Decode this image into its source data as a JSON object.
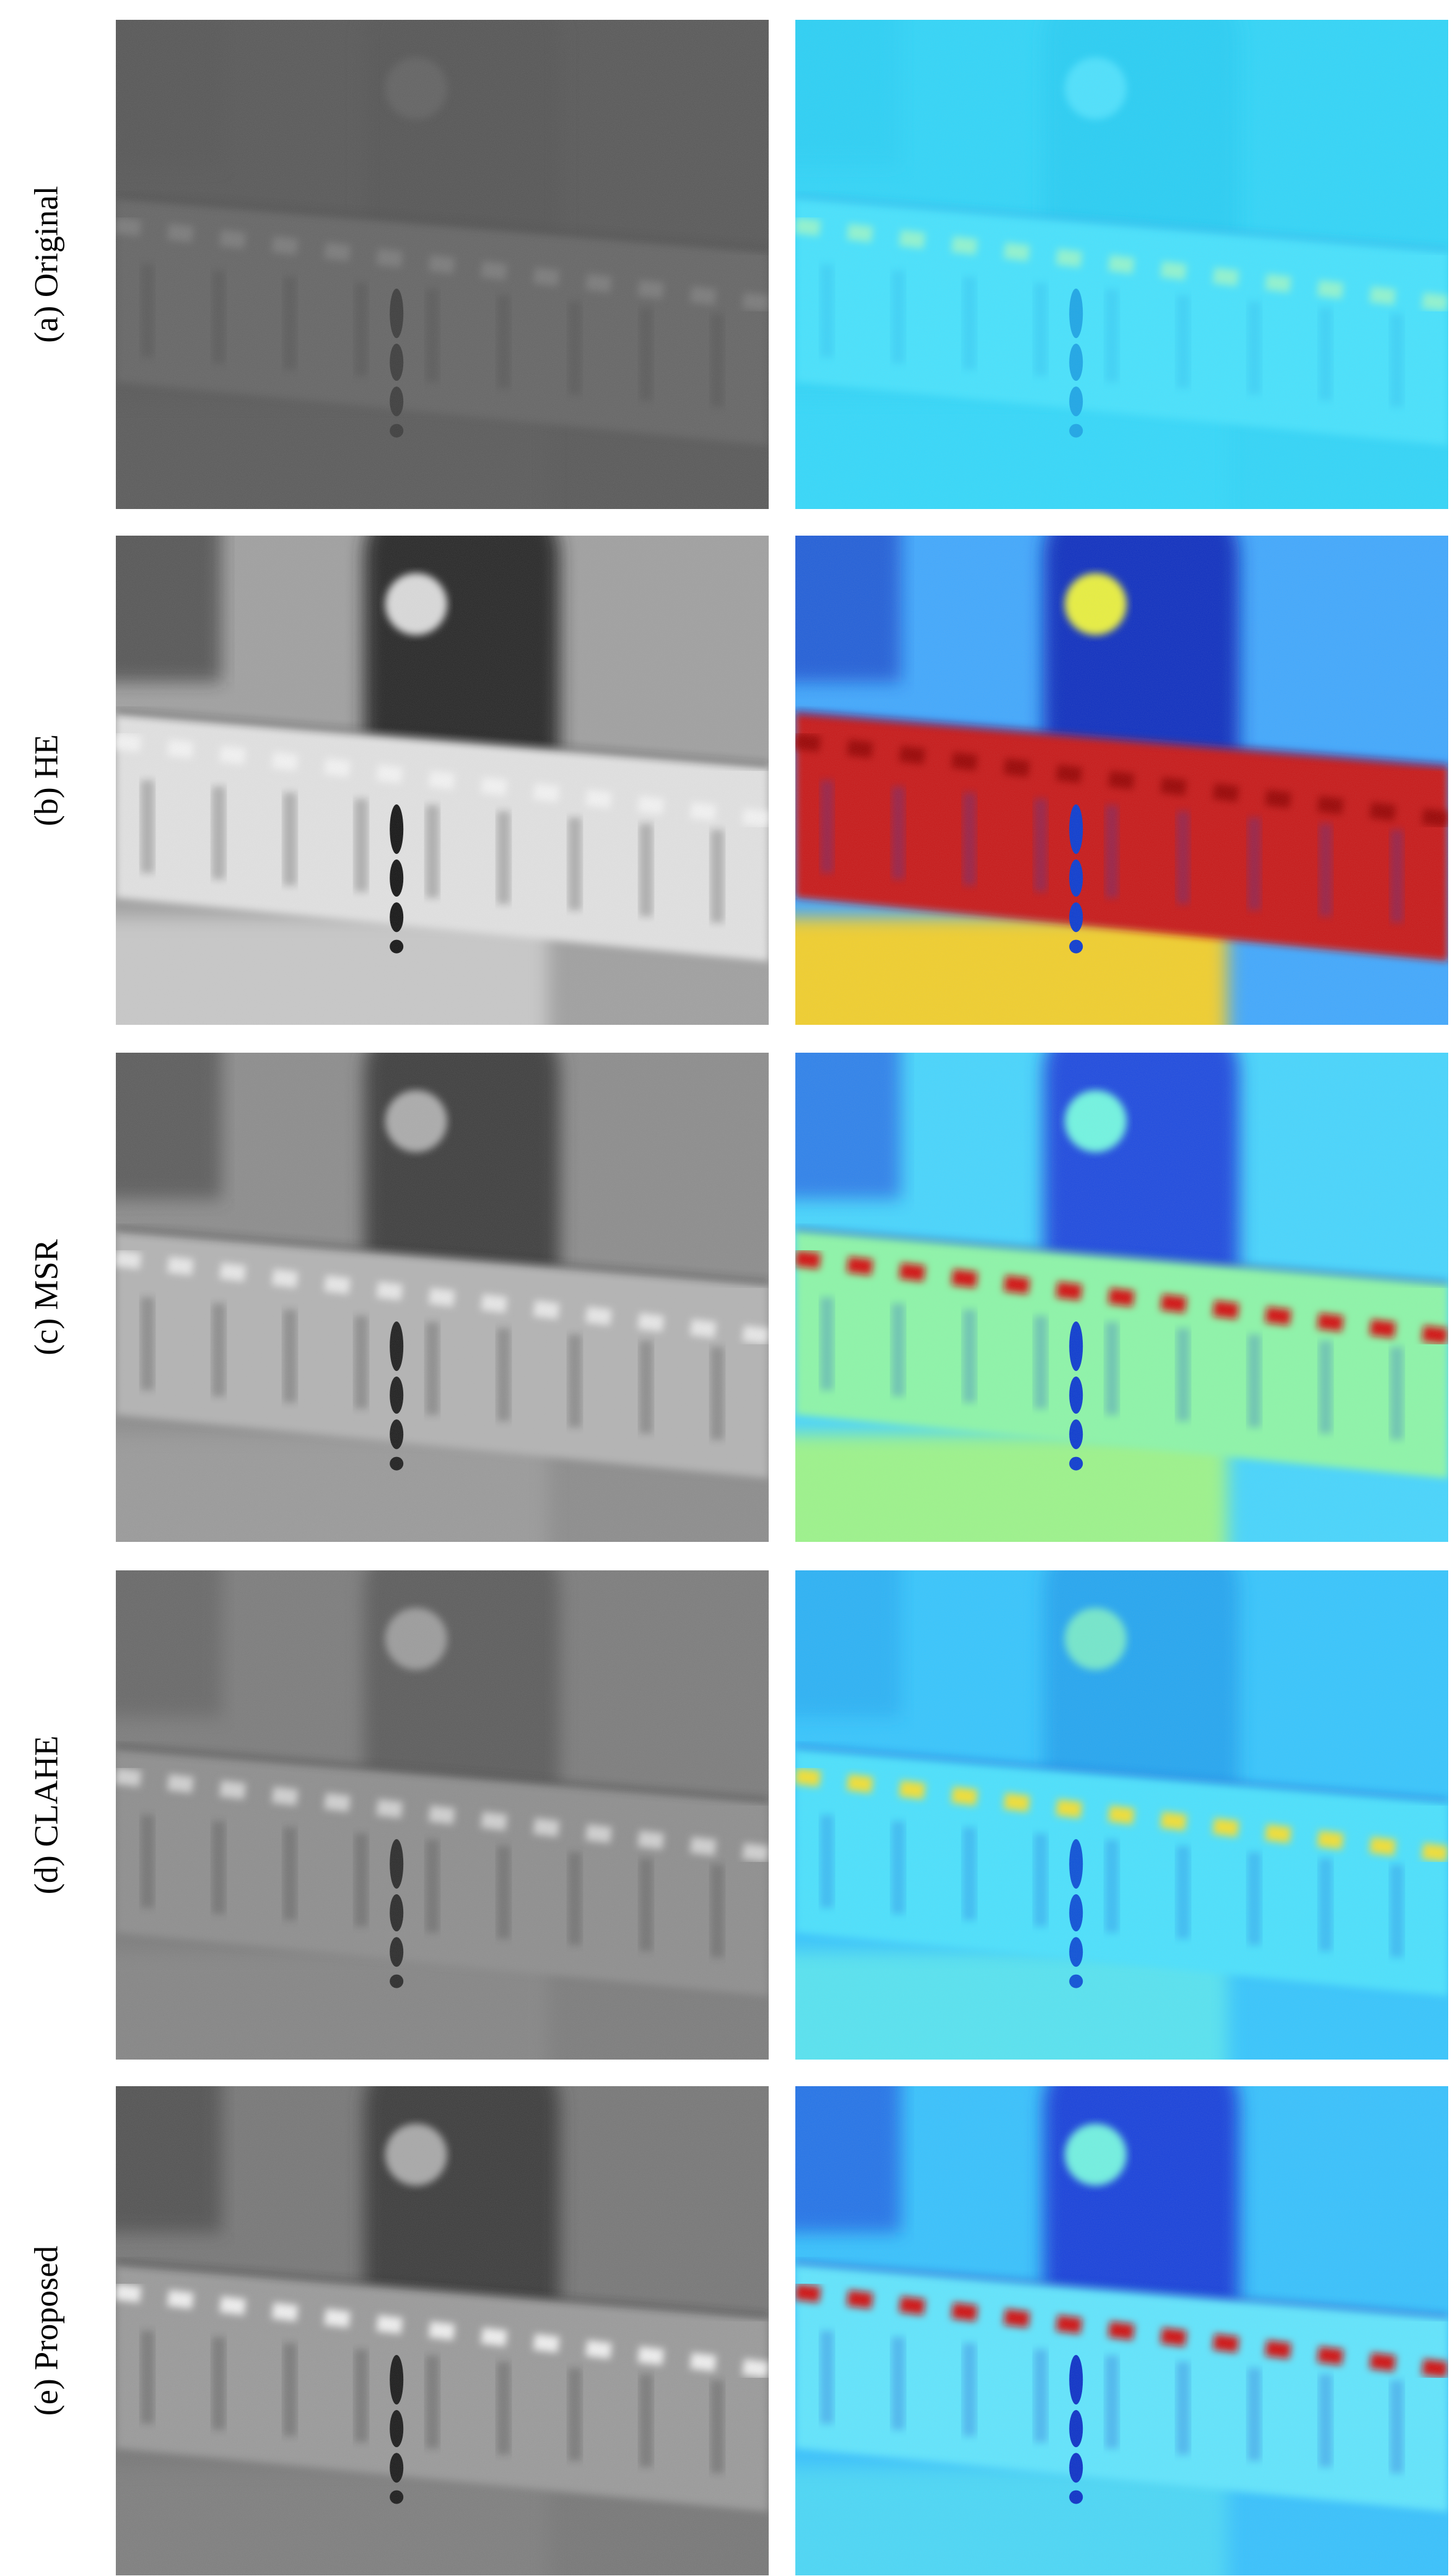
{
  "figure": {
    "rows": [
      {
        "label": "(a) Original"
      },
      {
        "label": "(b) HE"
      },
      {
        "label": "(c) MSR"
      },
      {
        "label": "(d) CLAHE"
      },
      {
        "label": "(e) Proposed"
      }
    ]
  }
}
